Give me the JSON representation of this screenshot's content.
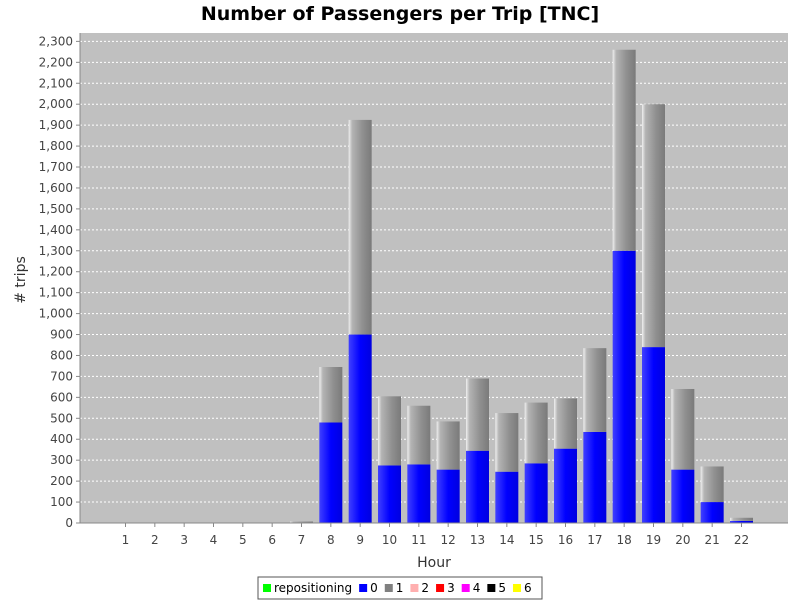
{
  "chart_data": {
    "type": "bar",
    "stacked": true,
    "title": "Number of Passengers per Trip [TNC]",
    "xlabel": "Hour",
    "ylabel": "# trips",
    "ylim": [
      0,
      2340
    ],
    "yticks": [
      0,
      100,
      200,
      300,
      400,
      500,
      600,
      700,
      800,
      900,
      1000,
      1100,
      1200,
      1300,
      1400,
      1500,
      1600,
      1700,
      1800,
      1900,
      2000,
      2100,
      2200,
      2300
    ],
    "ytick_labels": [
      "0",
      "100",
      "200",
      "300",
      "400",
      "500",
      "600",
      "700",
      "800",
      "900",
      "1,000",
      "1,100",
      "1,200",
      "1,300",
      "1,400",
      "1,500",
      "1,600",
      "1,700",
      "1,800",
      "1,900",
      "2,000",
      "2,100",
      "2,200",
      "2,300"
    ],
    "categories": [
      "1",
      "2",
      "3",
      "4",
      "5",
      "6",
      "7",
      "8",
      "9",
      "10",
      "11",
      "12",
      "13",
      "14",
      "15",
      "16",
      "17",
      "18",
      "19",
      "20",
      "21",
      "22"
    ],
    "grid": true,
    "legend_position": "bottom",
    "series": [
      {
        "name": "repositioning",
        "color": "#00ff00",
        "values": [
          0,
          0,
          0,
          0,
          0,
          0,
          0,
          0,
          0,
          0,
          0,
          0,
          0,
          0,
          0,
          0,
          0,
          0,
          0,
          0,
          0,
          0
        ]
      },
      {
        "name": "0",
        "color": "#0000ff",
        "values": [
          0,
          0,
          0,
          0,
          0,
          0,
          5,
          480,
          900,
          275,
          280,
          255,
          345,
          245,
          285,
          355,
          435,
          1300,
          840,
          255,
          100,
          10
        ]
      },
      {
        "name": "1",
        "color": "#808080",
        "values": [
          0,
          0,
          0,
          0,
          0,
          0,
          2,
          265,
          1025,
          330,
          280,
          230,
          345,
          280,
          290,
          240,
          400,
          960,
          1160,
          385,
          170,
          15
        ]
      },
      {
        "name": "2",
        "color": "#ffafaf",
        "values": [
          0,
          0,
          0,
          0,
          0,
          0,
          0,
          0,
          0,
          0,
          0,
          0,
          0,
          0,
          0,
          0,
          0,
          0,
          0,
          0,
          0,
          0
        ]
      },
      {
        "name": "3",
        "color": "#ff0000",
        "values": [
          0,
          0,
          0,
          0,
          0,
          0,
          0,
          0,
          0,
          0,
          0,
          0,
          0,
          0,
          0,
          0,
          0,
          0,
          0,
          0,
          0,
          0
        ]
      },
      {
        "name": "4",
        "color": "#ff00ff",
        "values": [
          0,
          0,
          0,
          0,
          0,
          0,
          0,
          0,
          0,
          0,
          0,
          0,
          0,
          0,
          0,
          0,
          0,
          0,
          0,
          0,
          0,
          0
        ]
      },
      {
        "name": "5",
        "color": "#000000",
        "values": [
          0,
          0,
          0,
          0,
          0,
          0,
          0,
          0,
          0,
          0,
          0,
          0,
          0,
          0,
          0,
          0,
          0,
          0,
          0,
          0,
          0,
          0
        ]
      },
      {
        "name": "6",
        "color": "#ffff00",
        "values": [
          0,
          0,
          0,
          0,
          0,
          0,
          0,
          0,
          0,
          0,
          0,
          0,
          0,
          0,
          0,
          0,
          0,
          0,
          0,
          0,
          0,
          0
        ]
      }
    ]
  }
}
